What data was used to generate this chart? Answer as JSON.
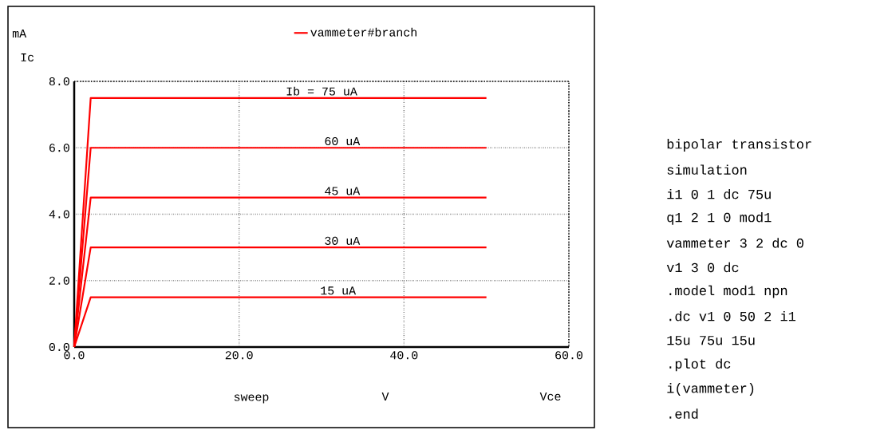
{
  "chart_data": {
    "type": "line",
    "xlabel": "Vce",
    "ylabel": "Ic",
    "x": [
      0,
      2,
      50
    ],
    "series": [
      {
        "name": "vammeter#branch",
        "color": "#ff0000",
        "values": [
          0,
          7.5,
          7.5
        ]
      },
      {
        "color": "#ff0000",
        "values": [
          0,
          6.0,
          6.0
        ]
      },
      {
        "color": "#ff0000",
        "values": [
          0,
          4.5,
          4.5
        ]
      },
      {
        "color": "#ff0000",
        "values": [
          0,
          3.0,
          3.0
        ]
      },
      {
        "color": "#ff0000",
        "values": [
          0,
          1.5,
          1.5
        ]
      }
    ],
    "xlim": [
      0,
      60
    ],
    "ylim": [
      0,
      8
    ],
    "xticks": [
      {
        "value": 0,
        "label": "0.0"
      },
      {
        "value": 20,
        "label": "20.0"
      },
      {
        "value": 40,
        "label": "40.0"
      },
      {
        "value": 60,
        "label": "60.0"
      }
    ],
    "yticks": [
      {
        "value": 0,
        "label": "0.0"
      },
      {
        "value": 2,
        "label": "2.0"
      },
      {
        "value": 4,
        "label": "4.0"
      },
      {
        "value": 6,
        "label": "6.0"
      },
      {
        "value": 8,
        "label": "8.0"
      }
    ],
    "grid": true,
    "legend": "top",
    "marker": "none",
    "line_style": "solid",
    "annotations": [
      {
        "text": "Ib = 75 uA",
        "x": 30,
        "y": 7.5
      },
      {
        "text": "60 uA",
        "x": 32.5,
        "y": 6.0
      },
      {
        "text": "45 uA",
        "x": 32.5,
        "y": 4.5
      },
      {
        "text": "30 uA",
        "x": 32.5,
        "y": 3.0
      },
      {
        "text": "15 uA",
        "x": 32,
        "y": 1.5
      },
      "mA",
      "sweep",
      "V",
      "bipolar transistor",
      "simulation",
      "i1 0 1 dc 75u",
      "q1 2 1 0 mod1",
      "vammeter 3 2 dc 0",
      "v1 3 0 dc",
      ".model mod1 npn",
      ".dc v1 0 50 2 i1",
      "15u 75u 15u",
      ".plot dc",
      "i(vammeter)",
      ".end"
    ]
  }
}
